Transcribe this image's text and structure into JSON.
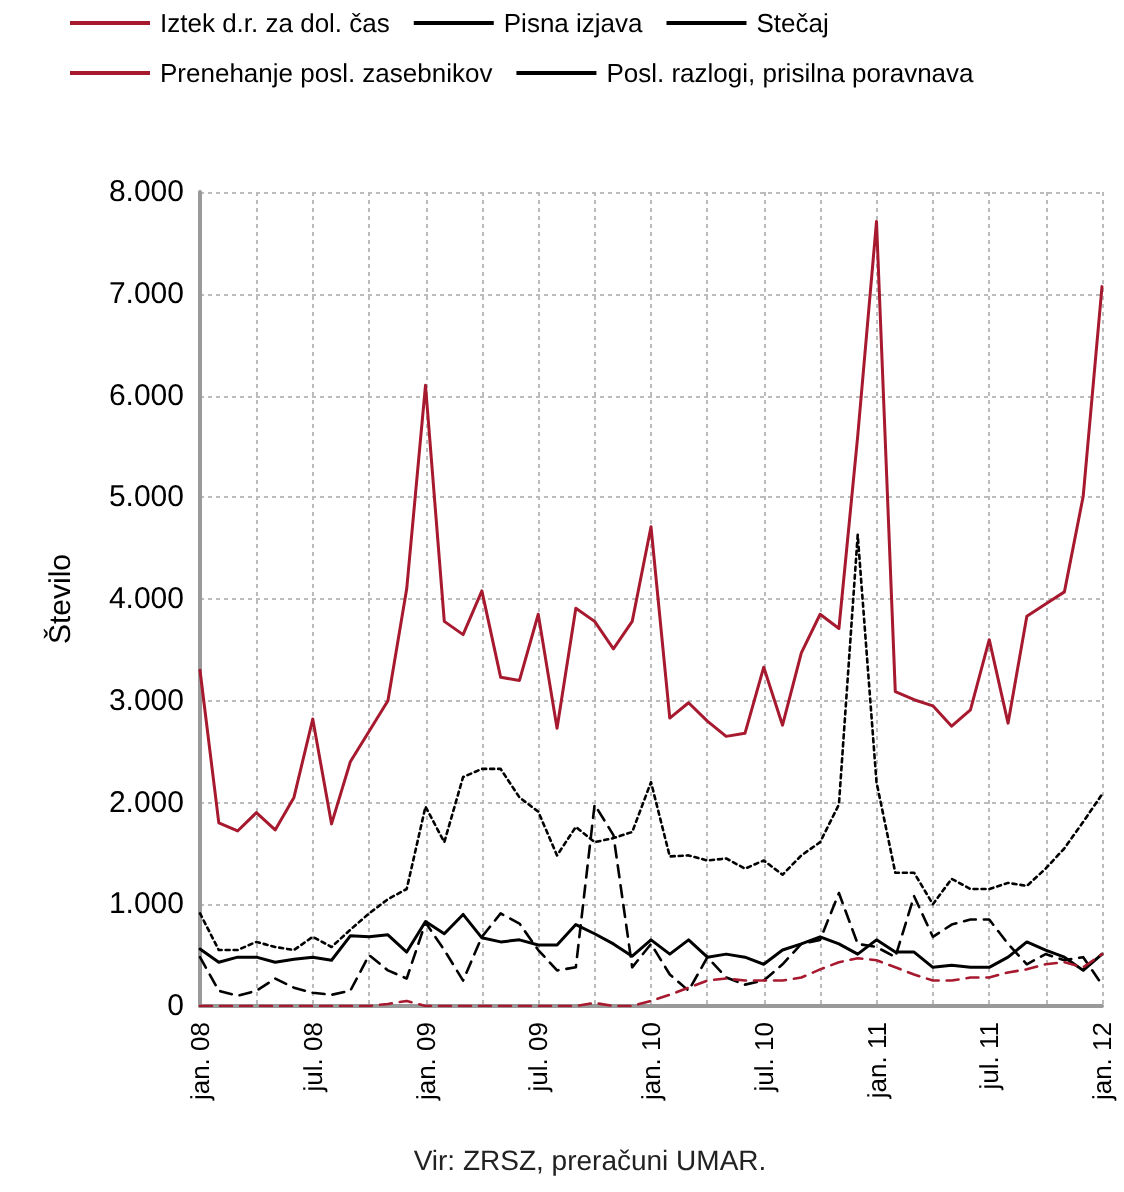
{
  "chart_data": {
    "type": "line",
    "ylabel": "Število",
    "annotations": [
      "Vir: ZRSZ, preračuni UMAR."
    ],
    "categories": [
      "jan. 08",
      null,
      null,
      null,
      null,
      null,
      "jul. 08",
      null,
      null,
      null,
      null,
      null,
      "jan. 09",
      null,
      null,
      null,
      null,
      null,
      "jul. 09",
      null,
      null,
      null,
      null,
      null,
      "jan. 10",
      null,
      null,
      null,
      null,
      null,
      "jul. 10",
      null,
      null,
      null,
      null,
      null,
      "jan. 11",
      null,
      null,
      null,
      null,
      null,
      "jul. 11",
      null,
      null,
      null,
      null,
      null,
      "jan. 12"
    ],
    "series": [
      {
        "name": "Iztek d.r. za dol. čas",
        "color": "#a6192e",
        "line_style": "solid",
        "values": [
          3300,
          1800,
          1720,
          1900,
          1730,
          2050,
          2820,
          1790,
          2400,
          2700,
          3000,
          4100,
          6100,
          3780,
          3650,
          4080,
          3230,
          3200,
          3850,
          2730,
          3910,
          3780,
          3510,
          3780,
          4710,
          2830,
          2980,
          2800,
          2650,
          2680,
          3330,
          2760,
          3470,
          3850,
          3710,
          5600,
          7710,
          3090,
          3010,
          2950,
          2750,
          2910,
          3600,
          2780,
          3830,
          3950,
          4070,
          5010,
          7070
        ]
      },
      {
        "name": "Pisna izjava",
        "color": "#000000",
        "line_style": "solid",
        "values": [
          560,
          430,
          480,
          480,
          430,
          460,
          480,
          450,
          690,
          680,
          700,
          530,
          830,
          710,
          900,
          670,
          630,
          650,
          600,
          600,
          800,
          710,
          610,
          490,
          650,
          510,
          650,
          480,
          510,
          480,
          410,
          550,
          610,
          680,
          610,
          510,
          650,
          530,
          530,
          380,
          400,
          380,
          380,
          480,
          630,
          550,
          480,
          350,
          510
        ]
      },
      {
        "name": "Stečaj",
        "color": "#000000",
        "line_style": "dashed",
        "values": [
          480,
          150,
          100,
          150,
          270,
          180,
          130,
          110,
          150,
          500,
          350,
          270,
          820,
          550,
          250,
          680,
          910,
          810,
          550,
          350,
          380,
          1980,
          1680,
          380,
          610,
          310,
          150,
          480,
          280,
          210,
          250,
          410,
          610,
          650,
          1110,
          610,
          580,
          480,
          1080,
          680,
          800,
          850,
          850,
          610,
          410,
          510,
          450,
          480,
          210
        ]
      },
      {
        "name": "Prenehanje posl. zasebnikov",
        "color": "#a6192e",
        "line_style": "dashed",
        "values": [
          0,
          0,
          0,
          0,
          0,
          0,
          0,
          0,
          0,
          0,
          20,
          50,
          0,
          0,
          0,
          0,
          0,
          0,
          0,
          0,
          0,
          30,
          0,
          0,
          50,
          110,
          180,
          250,
          270,
          250,
          250,
          250,
          280,
          360,
          430,
          470,
          450,
          380,
          310,
          250,
          250,
          280,
          280,
          330,
          360,
          410,
          430,
          380,
          510
        ]
      },
      {
        "name": "Posl. razlogi, prisilna poravnava",
        "color": "#000000",
        "line_style": "dotted",
        "values": [
          910,
          550,
          550,
          630,
          580,
          550,
          680,
          580,
          750,
          910,
          1050,
          1150,
          1960,
          1610,
          2250,
          2330,
          2330,
          2050,
          1910,
          1480,
          1760,
          1610,
          1650,
          1710,
          2200,
          1470,
          1480,
          1430,
          1450,
          1350,
          1430,
          1290,
          1480,
          1610,
          1980,
          4630,
          2200,
          1310,
          1310,
          1000,
          1250,
          1150,
          1150,
          1210,
          1180,
          1350,
          1550,
          1810,
          2080
        ]
      }
    ],
    "ylim": [
      0,
      8000
    ],
    "yticks": [
      {
        "value": 0,
        "label": "0"
      },
      {
        "value": 1000,
        "label": "1.000"
      },
      {
        "value": 2000,
        "label": "2.000"
      },
      {
        "value": 3000,
        "label": "3.000"
      },
      {
        "value": 4000,
        "label": "4.000"
      },
      {
        "value": 5000,
        "label": "5.000"
      },
      {
        "value": 6000,
        "label": "6.000"
      },
      {
        "value": 7000,
        "label": "7.000"
      },
      {
        "value": 8000,
        "label": "8.000"
      }
    ],
    "grid": true,
    "legend": "top",
    "marker": "none"
  }
}
